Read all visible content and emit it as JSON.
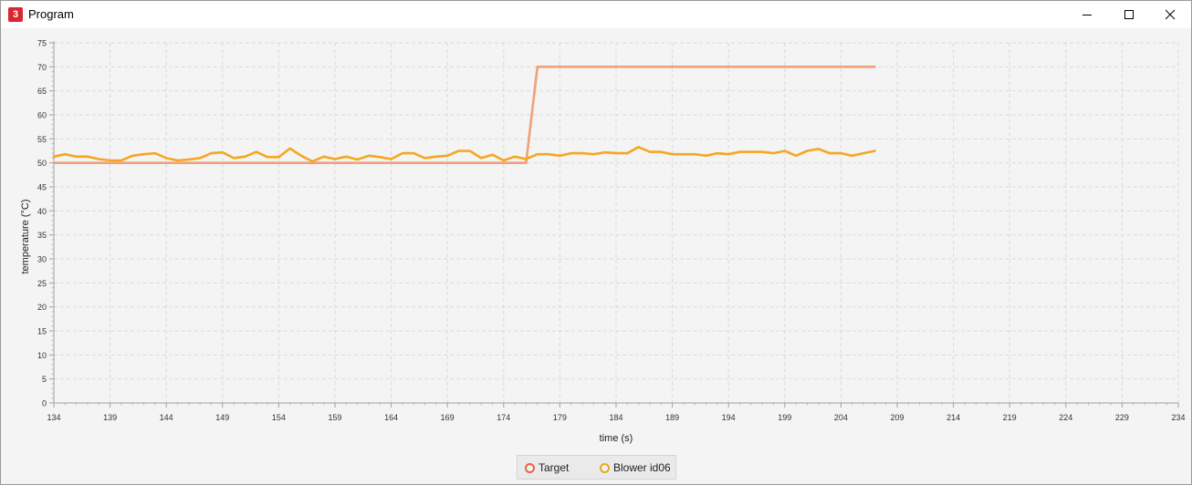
{
  "window": {
    "title": "Program",
    "app_icon": "app-logo-icon"
  },
  "controls": {
    "minimize_icon": "minimize-icon",
    "maximize_icon": "maximize-icon",
    "close_icon": "close-icon"
  },
  "chart_data": {
    "type": "line",
    "title": "",
    "xlabel": "time (s)",
    "ylabel": "temperature (°C)",
    "xlim": [
      134,
      234
    ],
    "ylim": [
      0,
      75
    ],
    "x_ticks": [
      134,
      139,
      144,
      149,
      154,
      159,
      164,
      169,
      174,
      179,
      184,
      189,
      194,
      199,
      204,
      209,
      214,
      219,
      224,
      229,
      234
    ],
    "y_ticks": [
      0,
      5,
      10,
      15,
      20,
      25,
      30,
      35,
      40,
      45,
      50,
      55,
      60,
      65,
      70,
      75
    ],
    "grid": true,
    "legend_position": "bottom-center",
    "colors": {
      "Target": "#f0a07a",
      "Blower id06": "#f5a623"
    },
    "legend_colors": {
      "Target": "#e8623a",
      "Blower id06": "#e9a81a"
    },
    "series": [
      {
        "name": "Target",
        "x": [
          134,
          176,
          177,
          207
        ],
        "y": [
          50,
          50,
          70,
          70
        ]
      },
      {
        "name": "Blower id06",
        "x": [
          134,
          135,
          136,
          137,
          138,
          139,
          140,
          141,
          142,
          143,
          144,
          145,
          146,
          147,
          148,
          149,
          150,
          151,
          152,
          153,
          154,
          155,
          156,
          157,
          158,
          159,
          160,
          161,
          162,
          163,
          164,
          165,
          166,
          167,
          168,
          169,
          170,
          171,
          172,
          173,
          174,
          175,
          176,
          177,
          178,
          179,
          180,
          181,
          182,
          183,
          184,
          185,
          186,
          187,
          188,
          189,
          190,
          191,
          192,
          193,
          194,
          195,
          196,
          197,
          198,
          199,
          200,
          201,
          202,
          203,
          204,
          205,
          206,
          207
        ],
        "y": [
          51.3,
          51.8,
          51.3,
          51.3,
          50.8,
          50.5,
          50.5,
          51.5,
          51.8,
          52.0,
          51.0,
          50.5,
          50.7,
          51.0,
          52.0,
          52.2,
          51.0,
          51.3,
          52.3,
          51.2,
          51.2,
          53.0,
          51.5,
          50.3,
          51.3,
          50.8,
          51.3,
          50.7,
          51.5,
          51.2,
          50.8,
          52.0,
          52.0,
          51.0,
          51.3,
          51.5,
          52.5,
          52.5,
          51.0,
          51.7,
          50.5,
          51.3,
          50.8,
          51.8,
          51.8,
          51.5,
          52.0,
          52.0,
          51.8,
          52.2,
          52.0,
          52.0,
          53.3,
          52.3,
          52.3,
          51.8,
          51.8,
          51.8,
          51.5,
          52.0,
          51.8,
          52.3,
          52.3,
          52.3,
          52.0,
          52.5,
          51.5,
          52.5,
          52.9,
          52.0,
          52.0,
          51.5,
          52.0,
          52.5
        ]
      }
    ]
  }
}
